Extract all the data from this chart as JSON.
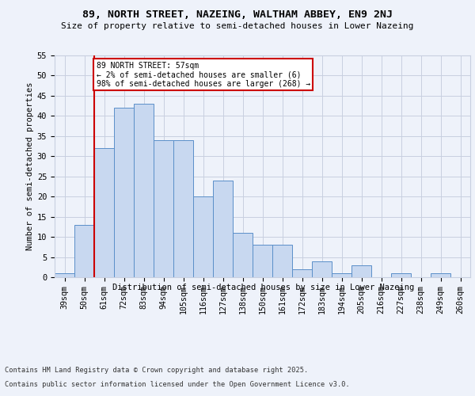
{
  "title": "89, NORTH STREET, NAZEING, WALTHAM ABBEY, EN9 2NJ",
  "subtitle": "Size of property relative to semi-detached houses in Lower Nazeing",
  "xlabel": "Distribution of semi-detached houses by size in Lower Nazeing",
  "ylabel": "Number of semi-detached properties",
  "bins": [
    "39sqm",
    "50sqm",
    "61sqm",
    "72sqm",
    "83sqm",
    "94sqm",
    "105sqm",
    "116sqm",
    "127sqm",
    "138sqm",
    "150sqm",
    "161sqm",
    "172sqm",
    "183sqm",
    "194sqm",
    "205sqm",
    "216sqm",
    "227sqm",
    "238sqm",
    "249sqm",
    "260sqm"
  ],
  "values": [
    1,
    13,
    32,
    42,
    43,
    34,
    34,
    20,
    24,
    11,
    8,
    8,
    2,
    4,
    1,
    3,
    0,
    1,
    0,
    1,
    0
  ],
  "bar_color": "#c8d8f0",
  "bar_edge_color": "#5b8fc9",
  "annotation_title": "89 NORTH STREET: 57sqm",
  "annotation_line1": "← 2% of semi-detached houses are smaller (6)",
  "annotation_line2": "98% of semi-detached houses are larger (268) →",
  "annotation_box_color": "#ffffff",
  "annotation_box_edge": "#cc0000",
  "vline_color": "#cc0000",
  "ylim": [
    0,
    55
  ],
  "yticks": [
    0,
    5,
    10,
    15,
    20,
    25,
    30,
    35,
    40,
    45,
    50,
    55
  ],
  "footer1": "Contains HM Land Registry data © Crown copyright and database right 2025.",
  "footer2": "Contains public sector information licensed under the Open Government Licence v3.0.",
  "bg_color": "#eef2fa",
  "grid_color": "#c8cfe0"
}
